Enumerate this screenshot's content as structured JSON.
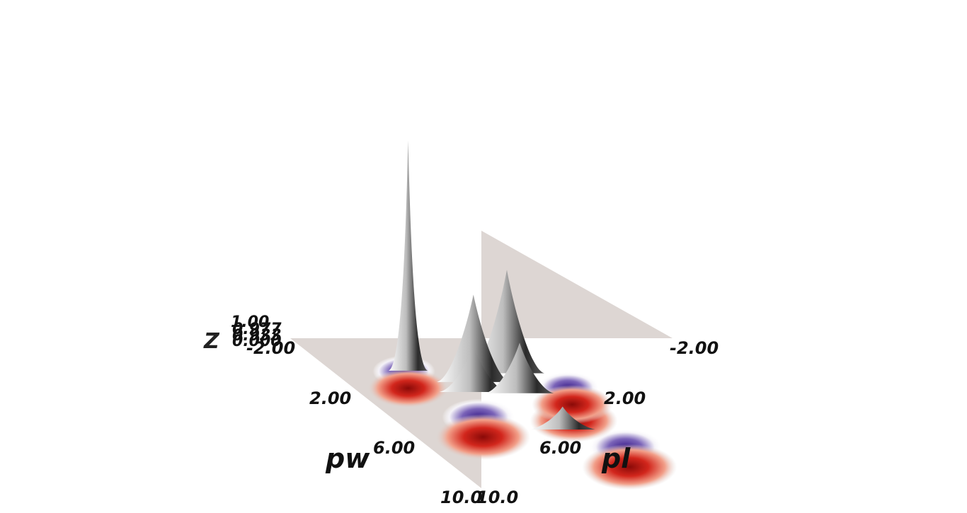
{
  "chart_data": {
    "type": "surface",
    "title": "",
    "x_axis": {
      "label": "pw",
      "range": [
        -2.0,
        10.0
      ],
      "ticks": [
        "-2.00",
        "2.00",
        "6.00",
        "10.0"
      ]
    },
    "y_axis": {
      "label": "pl",
      "range": [
        -2.0,
        10.0
      ],
      "ticks": [
        "-2.00",
        "2.00",
        "6.00",
        "10.0"
      ]
    },
    "z_axis": {
      "label": "Z",
      "range": [
        0.0,
        1.0
      ],
      "ticks": [
        "1.00",
        "0.977",
        "0.933",
        "0.000"
      ]
    },
    "colormap": {
      "negative": "#c0100f",
      "zero": "#ffffff",
      "positive": "#1a1a1a",
      "mid_negative": "#5b3fa0"
    },
    "floor_color": "#ddd6d3",
    "peaks": [
      {
        "pw": 0.6,
        "pl": 0.4,
        "z": 1.0
      },
      {
        "pw": 1.5,
        "pl": 2.0,
        "z": 0.38
      },
      {
        "pw": 0.8,
        "pl": 3.4,
        "z": 0.45
      },
      {
        "pw": 2.3,
        "pl": 1.6,
        "z": 0.2
      },
      {
        "pw": 2.4,
        "pl": 3.0,
        "z": 0.22
      },
      {
        "pw": 5.3,
        "pl": 2.9,
        "z": 0.1
      }
    ],
    "troughs": [
      {
        "pw": 5.9,
        "pl": 0.1,
        "z": -0.12
      },
      {
        "pw": 8.3,
        "pl": 3.5,
        "z": -0.12
      },
      {
        "pw": 2.0,
        "pl": -0.3,
        "z": -0.08
      },
      {
        "pw": 4.6,
        "pl": 3.6,
        "z": -0.1
      },
      {
        "pw": 3.3,
        "pl": 4.2,
        "z": -0.08
      }
    ],
    "grid": false,
    "legend": "none"
  }
}
